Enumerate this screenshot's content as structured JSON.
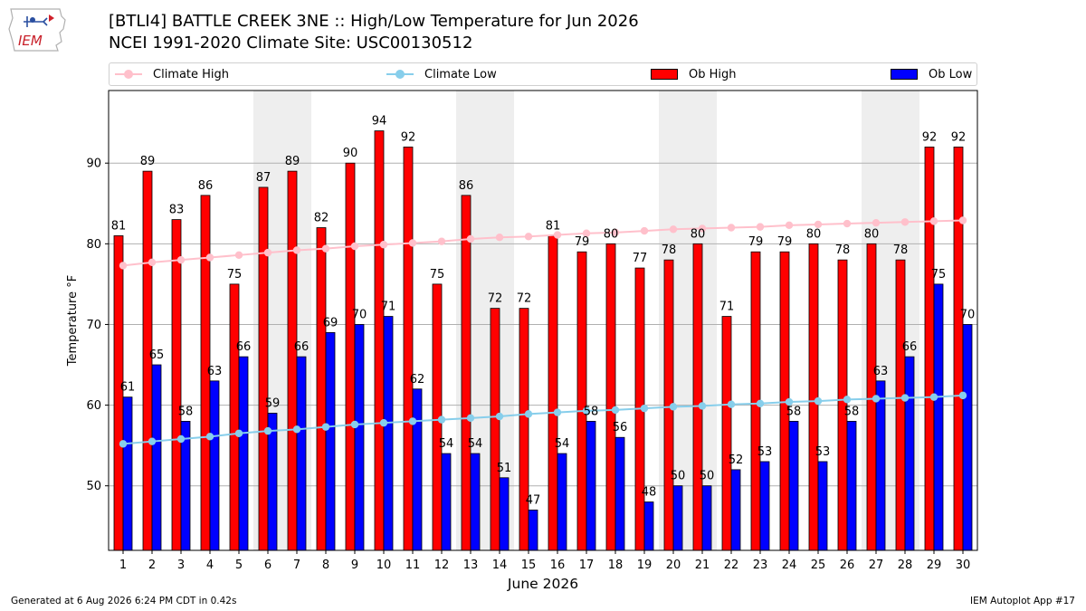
{
  "header": {
    "title_line1": "[BTLI4] BATTLE CREEK 3NE :: High/Low Temperature for Jun 2026",
    "title_line2": "NCEI 1991-2020 Climate Site: USC00130512",
    "logo_text": "IEM"
  },
  "legend": {
    "items": [
      {
        "label": "Climate High",
        "kind": "line",
        "color": "#ffc0cb"
      },
      {
        "label": "Climate Low",
        "kind": "line",
        "color": "#87ceeb"
      },
      {
        "label": "Ob High",
        "kind": "box",
        "color": "#ff0000"
      },
      {
        "label": "Ob Low",
        "kind": "box",
        "color": "#0000ff"
      }
    ]
  },
  "footer": {
    "left": "Generated at 6 Aug 2026 6:24 PM CDT in 0.42s",
    "right": "IEM Autoplot App #17"
  },
  "chart_data": {
    "type": "bar",
    "xlabel": "June 2026",
    "ylabel": "Temperature °F",
    "ylim": [
      42,
      99
    ],
    "yticks": [
      50,
      60,
      70,
      80,
      90
    ],
    "grid": "horizontal",
    "weekend_shading": [
      [
        6,
        7
      ],
      [
        13,
        14
      ],
      [
        20,
        21
      ],
      [
        27,
        28
      ]
    ],
    "categories": [
      1,
      2,
      3,
      4,
      5,
      6,
      7,
      8,
      9,
      10,
      11,
      12,
      13,
      14,
      15,
      16,
      17,
      18,
      19,
      20,
      21,
      22,
      23,
      24,
      25,
      26,
      27,
      28,
      29,
      30
    ],
    "series": [
      {
        "name": "Ob High",
        "kind": "bar",
        "color": "#ff0000",
        "values": [
          81,
          89,
          83,
          86,
          75,
          87,
          89,
          82,
          90,
          94,
          92,
          75,
          86,
          72,
          72,
          81,
          79,
          80,
          77,
          78,
          80,
          71,
          79,
          79,
          80,
          78,
          80,
          78,
          92,
          92
        ]
      },
      {
        "name": "Ob Low",
        "kind": "bar",
        "color": "#0000ff",
        "values": [
          61,
          65,
          58,
          63,
          66,
          59,
          66,
          69,
          70,
          71,
          62,
          54,
          54,
          51,
          47,
          54,
          58,
          56,
          48,
          50,
          50,
          52,
          53,
          58,
          53,
          58,
          63,
          66,
          75,
          70
        ]
      },
      {
        "name": "Climate High",
        "kind": "line",
        "color": "#ffc0cb",
        "values": [
          77.3,
          77.7,
          78.0,
          78.3,
          78.6,
          78.9,
          79.2,
          79.4,
          79.7,
          79.9,
          80.1,
          80.3,
          80.6,
          80.8,
          80.9,
          81.1,
          81.3,
          81.4,
          81.6,
          81.8,
          81.9,
          82.0,
          82.1,
          82.3,
          82.4,
          82.5,
          82.6,
          82.7,
          82.8,
          82.9
        ]
      },
      {
        "name": "Climate Low",
        "kind": "line",
        "color": "#87ceeb",
        "values": [
          55.2,
          55.5,
          55.8,
          56.1,
          56.5,
          56.8,
          57.0,
          57.3,
          57.6,
          57.8,
          58.0,
          58.2,
          58.4,
          58.6,
          58.9,
          59.1,
          59.3,
          59.4,
          59.6,
          59.8,
          59.9,
          60.1,
          60.2,
          60.4,
          60.5,
          60.7,
          60.8,
          60.9,
          61.0,
          61.2
        ]
      }
    ]
  }
}
